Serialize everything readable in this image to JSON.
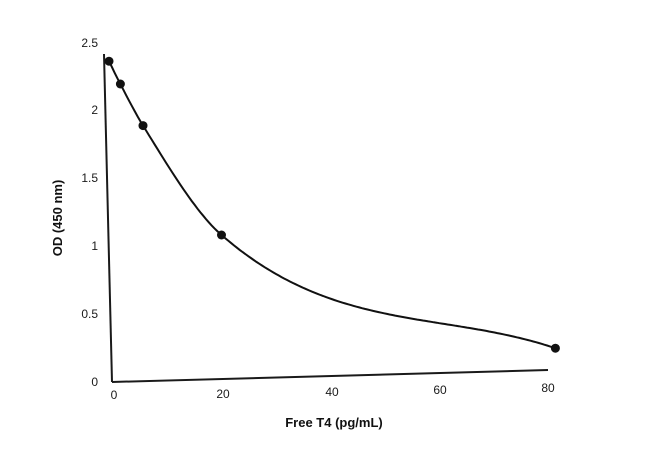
{
  "chart_data": {
    "type": "scatter",
    "title": "",
    "xlabel": "Free T4 (pg/mL)",
    "ylabel": "OD (450 nm)",
    "xlim": [
      0,
      80
    ],
    "ylim": [
      0,
      2.5
    ],
    "x_ticks": [
      "0",
      "20",
      "40",
      "60",
      "80"
    ],
    "y_ticks": [
      "0",
      "0.5",
      "1",
      "1.5",
      "2",
      "2.5"
    ],
    "grid": false,
    "legend": "none",
    "series": [
      {
        "points": [
          {
            "x": -1,
            "y": 2.36
          },
          {
            "x": 1,
            "y": 2.19
          },
          {
            "x": 5,
            "y": 1.88
          },
          {
            "x": 19,
            "y": 1.06
          },
          {
            "x": 80,
            "y": 0.16
          }
        ],
        "fit_curve": true
      }
    ],
    "colors": {
      "line": "#111111",
      "marker": "#111111",
      "axis": "#1a1a1a"
    }
  }
}
